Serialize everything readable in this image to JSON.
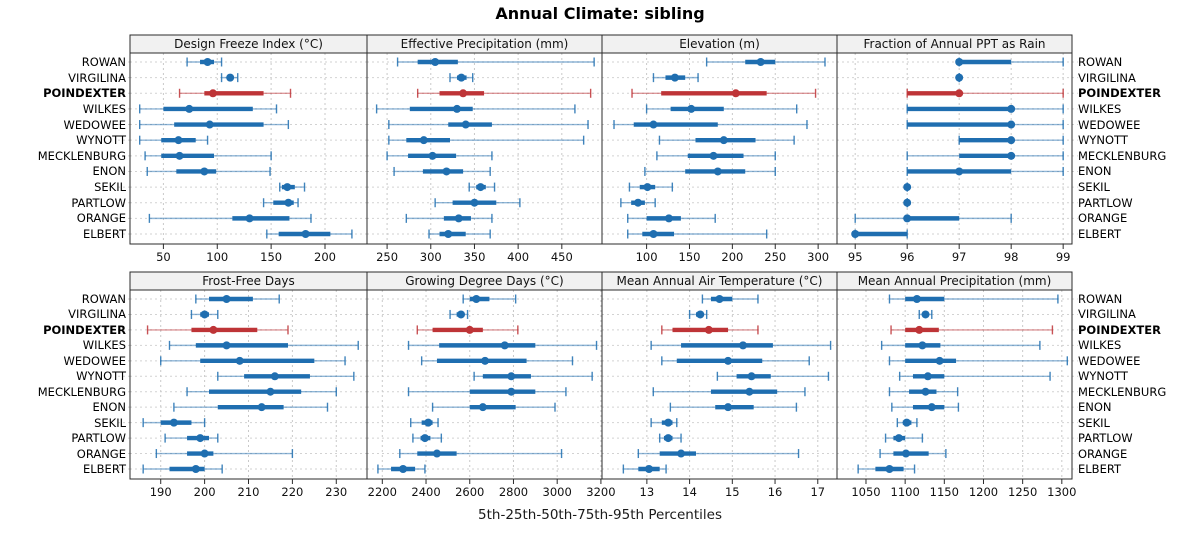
{
  "chart_data": {
    "type": "interval",
    "title": "Annual Climate: sibling",
    "caption": "5th-25th-50th-75th-95th Percentiles",
    "percentile_labels": [
      "5th",
      "25th",
      "50th",
      "75th",
      "95th"
    ],
    "series_labels": [
      "ROWAN",
      "VIRGILINA",
      "POINDEXTER",
      "WILKES",
      "WEDOWEE",
      "WYNOTT",
      "MECKLENBURG",
      "ENON",
      "SEKIL",
      "PARTLOW",
      "ORANGE",
      "ELBERT"
    ],
    "highlight": "POINDEXTER",
    "colors": {
      "series": "#1F6EB0",
      "highlight": "#BE3437",
      "header_bg": "#F1F1F1",
      "border": "#2B2B2B",
      "grid": "#C9C9C9",
      "text": "#111111"
    },
    "legend_position": "none",
    "grid": true,
    "panels": [
      {
        "title": "Design Freeze Index (°C)",
        "ticks": [
          50,
          100,
          150,
          200
        ],
        "xlim": [
          19,
          239
        ],
        "values": [
          [
            72,
            84,
            91,
            97,
            104
          ],
          [
            104,
            109,
            112,
            115,
            119
          ],
          [
            65,
            88,
            96,
            143,
            168
          ],
          [
            28,
            50,
            74,
            133,
            155
          ],
          [
            28,
            60,
            93,
            143,
            166
          ],
          [
            28,
            48,
            64,
            80,
            91
          ],
          [
            33,
            48,
            65,
            97,
            150
          ],
          [
            35,
            62,
            88,
            99,
            149
          ],
          [
            158,
            160,
            165,
            172,
            181
          ],
          [
            143,
            152,
            166,
            171,
            175
          ],
          [
            37,
            114,
            130,
            167,
            187
          ],
          [
            146,
            157,
            182,
            205,
            225
          ]
        ]
      },
      {
        "title": "Effective Precipitation (mm)",
        "ticks": [
          250,
          300,
          350,
          400,
          450
        ],
        "xlim": [
          227,
          496
        ],
        "values": [
          [
            262,
            285,
            305,
            331,
            487
          ],
          [
            322,
            330,
            335,
            341,
            348
          ],
          [
            285,
            310,
            337,
            361,
            483
          ],
          [
            238,
            276,
            330,
            348,
            465
          ],
          [
            252,
            320,
            340,
            370,
            480
          ],
          [
            252,
            272,
            292,
            322,
            475
          ],
          [
            250,
            274,
            302,
            329,
            370
          ],
          [
            258,
            291,
            318,
            337,
            368
          ],
          [
            344,
            352,
            357,
            363,
            373
          ],
          [
            305,
            325,
            350,
            375,
            402
          ],
          [
            272,
            315,
            332,
            346,
            370
          ],
          [
            298,
            310,
            320,
            340,
            368
          ]
        ]
      },
      {
        "title": "Elevation (m)",
        "ticks": [
          100,
          150,
          200,
          250,
          300
        ],
        "xlim": [
          48,
          322
        ],
        "values": [
          [
            170,
            215,
            233,
            250,
            308
          ],
          [
            108,
            122,
            133,
            145,
            160
          ],
          [
            83,
            117,
            204,
            240,
            297
          ],
          [
            100,
            128,
            152,
            190,
            275
          ],
          [
            62,
            85,
            108,
            183,
            287
          ],
          [
            115,
            157,
            190,
            227,
            272
          ],
          [
            112,
            148,
            178,
            213,
            250
          ],
          [
            98,
            145,
            183,
            215,
            250
          ],
          [
            80,
            92,
            101,
            110,
            130
          ],
          [
            70,
            82,
            90,
            98,
            110
          ],
          [
            78,
            100,
            126,
            140,
            180
          ],
          [
            78,
            95,
            108,
            132,
            240
          ]
        ]
      },
      {
        "title": "Fraction of Annual PPT as Rain",
        "ticks": [
          95,
          96,
          97,
          98,
          99
        ],
        "xlim": [
          94.65,
          99.17
        ],
        "values": [
          [
            97,
            97,
            97,
            98,
            99
          ],
          [
            97,
            97,
            97,
            97,
            97
          ],
          [
            96,
            96,
            97,
            97,
            99
          ],
          [
            96,
            96,
            98,
            98,
            99
          ],
          [
            96,
            96,
            98,
            98,
            99
          ],
          [
            97,
            97,
            98,
            98,
            99
          ],
          [
            96,
            97,
            98,
            98,
            99
          ],
          [
            96,
            96,
            97,
            98,
            99
          ],
          [
            96,
            96,
            96,
            96,
            96
          ],
          [
            96,
            96,
            96,
            96,
            96
          ],
          [
            95,
            96,
            96,
            97,
            98
          ],
          [
            95,
            95,
            95,
            96,
            96
          ]
        ]
      },
      {
        "title": "Frost-Free Days",
        "ticks": [
          190,
          200,
          210,
          220,
          230
        ],
        "xlim": [
          183,
          237
        ],
        "values": [
          [
            198,
            201,
            205,
            211,
            217
          ],
          [
            197,
            199,
            200,
            201,
            203
          ],
          [
            187,
            197,
            202,
            212,
            219
          ],
          [
            192,
            198,
            205,
            219,
            235
          ],
          [
            190,
            199,
            208,
            225,
            232
          ],
          [
            203,
            209,
            216,
            224,
            234
          ],
          [
            196,
            201,
            215,
            222,
            230
          ],
          [
            193,
            203,
            213,
            218,
            228
          ],
          [
            186,
            190,
            193,
            197,
            200
          ],
          [
            191,
            196,
            199,
            201,
            203
          ],
          [
            189,
            196,
            200,
            202,
            220
          ],
          [
            186,
            192,
            198,
            200,
            204
          ]
        ]
      },
      {
        "title": "Growing Degree Days (°C)",
        "ticks": [
          2200,
          2400,
          2600,
          2800,
          3000,
          3200
        ],
        "xlim": [
          2130,
          3205
        ],
        "values": [
          [
            2570,
            2600,
            2630,
            2690,
            2810
          ],
          [
            2510,
            2540,
            2560,
            2575,
            2590
          ],
          [
            2360,
            2430,
            2600,
            2660,
            2820
          ],
          [
            2320,
            2460,
            2760,
            2900,
            3180
          ],
          [
            2380,
            2450,
            2670,
            2860,
            3070
          ],
          [
            2620,
            2660,
            2790,
            2880,
            3160
          ],
          [
            2320,
            2600,
            2790,
            2900,
            3040
          ],
          [
            2430,
            2600,
            2660,
            2810,
            2990
          ],
          [
            2330,
            2380,
            2410,
            2430,
            2455
          ],
          [
            2340,
            2375,
            2395,
            2420,
            2470
          ],
          [
            2280,
            2360,
            2450,
            2540,
            3020
          ],
          [
            2180,
            2240,
            2295,
            2350,
            2395
          ]
        ]
      },
      {
        "title": "Mean Annual Air Temperature (°C)",
        "ticks": [
          13,
          14,
          15,
          16,
          17
        ],
        "xlim": [
          11.95,
          17.45
        ],
        "values": [
          [
            14.3,
            14.5,
            14.7,
            15.0,
            15.6
          ],
          [
            14.0,
            14.15,
            14.25,
            14.3,
            14.4
          ],
          [
            13.35,
            13.6,
            14.45,
            14.9,
            15.6
          ],
          [
            13.1,
            13.8,
            15.25,
            15.95,
            17.3
          ],
          [
            13.35,
            13.7,
            14.9,
            15.7,
            16.8
          ],
          [
            14.65,
            15.1,
            15.45,
            15.9,
            17.25
          ],
          [
            13.15,
            14.5,
            15.4,
            16.05,
            16.7
          ],
          [
            13.55,
            14.6,
            14.9,
            15.5,
            16.5
          ],
          [
            13.1,
            13.35,
            13.5,
            13.6,
            13.7
          ],
          [
            13.3,
            13.4,
            13.5,
            13.6,
            13.8
          ],
          [
            12.8,
            13.3,
            13.8,
            14.15,
            16.55
          ],
          [
            12.45,
            12.8,
            13.05,
            13.3,
            13.45
          ]
        ]
      },
      {
        "title": "Mean Annual Precipitation (mm)",
        "ticks": [
          1050,
          1100,
          1150,
          1200,
          1250,
          1300
        ],
        "xlim": [
          1013,
          1313
        ],
        "values": [
          [
            1080,
            1100,
            1115,
            1150,
            1295
          ],
          [
            1118,
            1122,
            1126,
            1130,
            1134
          ],
          [
            1082,
            1100,
            1118,
            1143,
            1288
          ],
          [
            1070,
            1100,
            1122,
            1145,
            1272
          ],
          [
            1080,
            1100,
            1144,
            1165,
            1307
          ],
          [
            1093,
            1110,
            1129,
            1150,
            1285
          ],
          [
            1080,
            1105,
            1126,
            1140,
            1167
          ],
          [
            1083,
            1110,
            1134,
            1150,
            1168
          ],
          [
            1090,
            1097,
            1102,
            1108,
            1115
          ],
          [
            1075,
            1085,
            1092,
            1100,
            1122
          ],
          [
            1068,
            1085,
            1101,
            1130,
            1152
          ],
          [
            1040,
            1062,
            1080,
            1098,
            1112
          ]
        ]
      }
    ]
  }
}
